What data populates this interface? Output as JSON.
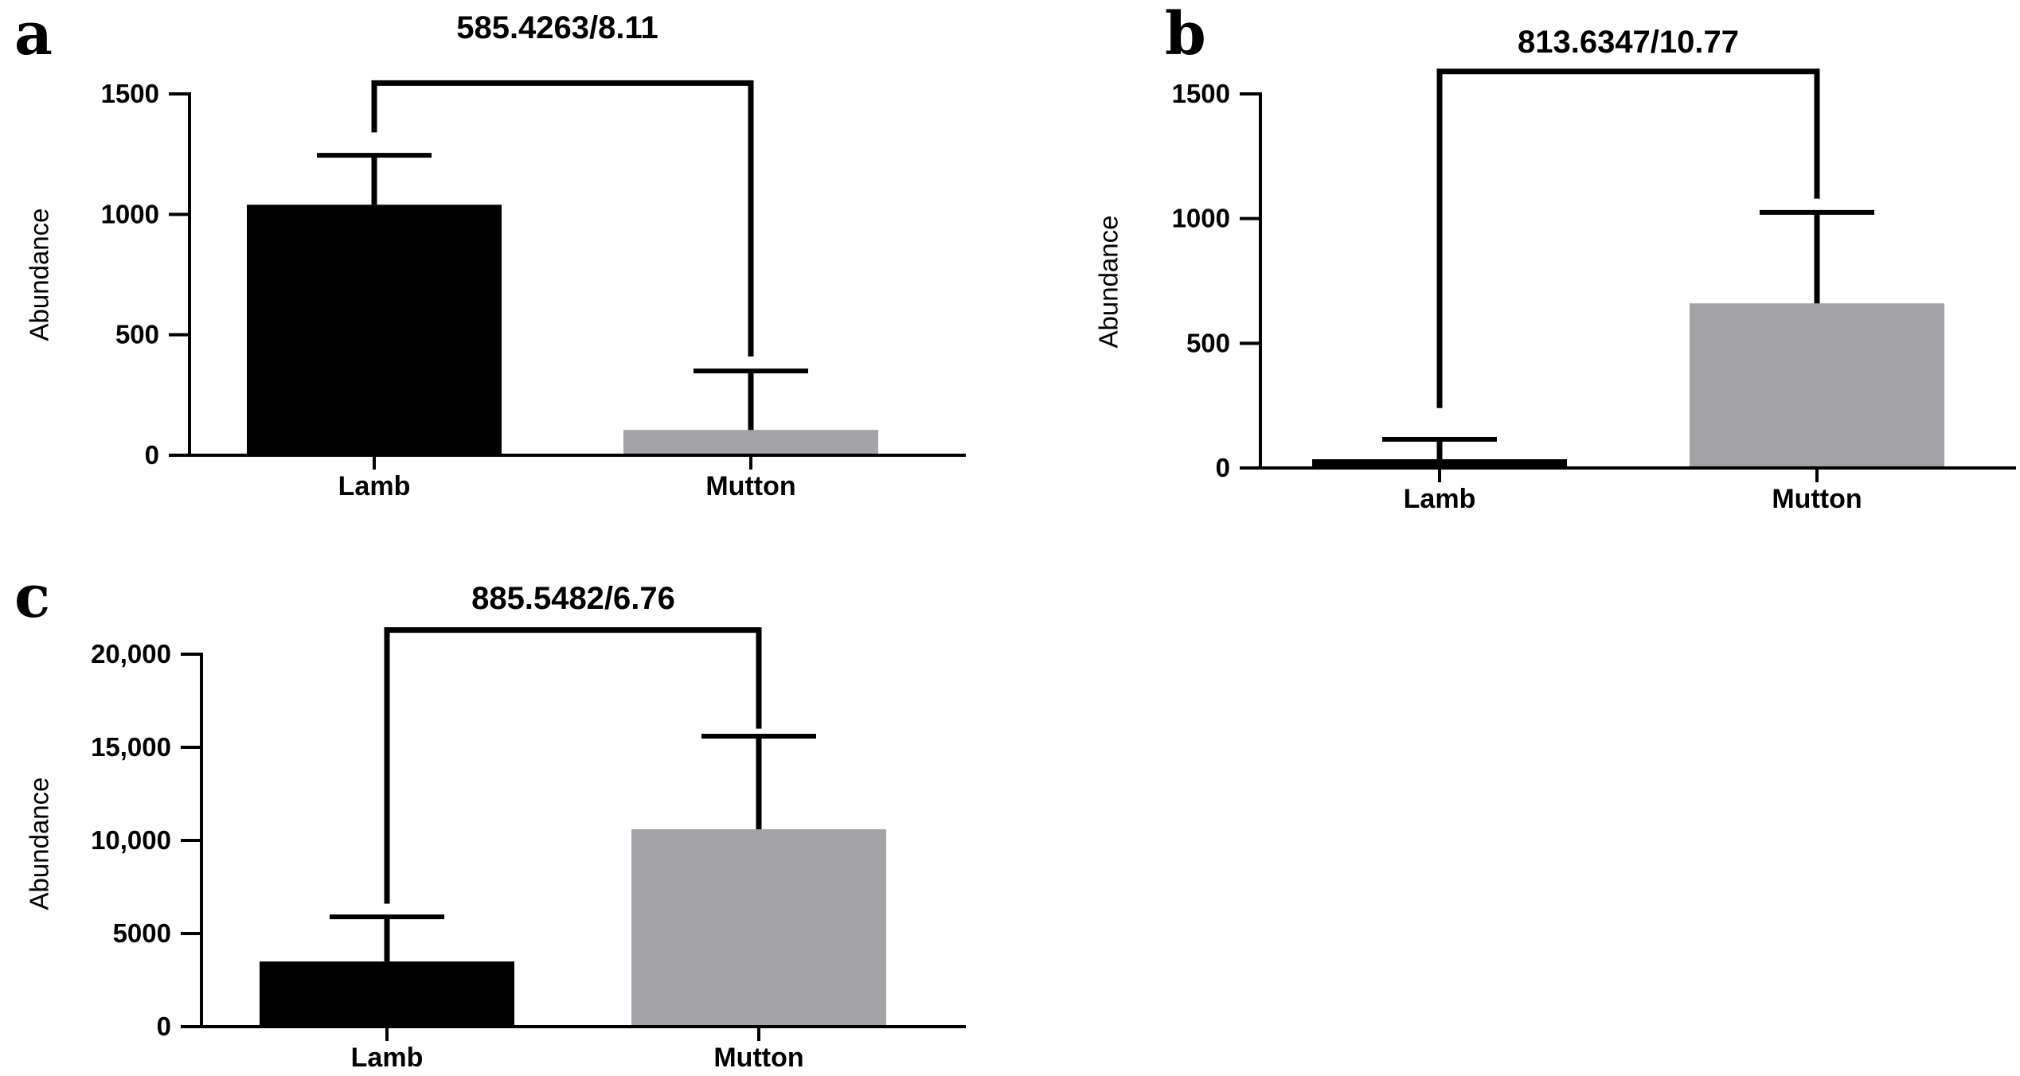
{
  "chart_data": [
    {
      "panel": "a",
      "type": "bar",
      "title": "585.4263/8.11",
      "ylabel": "Abundance",
      "xlabel": "",
      "categories": [
        "Lamb",
        "Mutton"
      ],
      "values": [
        1040,
        105
      ],
      "errors": [
        205,
        245
      ],
      "bar_colors": [
        "#000000",
        "#a3a2a6"
      ],
      "ylim": [
        0,
        1500
      ],
      "yticks": [
        0,
        500,
        1000,
        1500
      ],
      "ytick_labels": [
        "0",
        "500",
        "1000",
        "1500"
      ],
      "bracket_ends": [
        1340,
        410
      ],
      "bracket_top": 1545
    },
    {
      "panel": "b",
      "type": "bar",
      "title": "813.6347/10.77",
      "ylabel": "Abundance",
      "xlabel": "",
      "categories": [
        "Lamb",
        "Mutton"
      ],
      "values": [
        35,
        660
      ],
      "errors": [
        80,
        365
      ],
      "bar_colors": [
        "#000000",
        "#a3a2a6"
      ],
      "ylim": [
        0,
        1500
      ],
      "yticks": [
        0,
        500,
        1000,
        1500
      ],
      "ytick_labels": [
        "0",
        "500",
        "1000",
        "1500"
      ],
      "bracket_ends": [
        240,
        1080
      ],
      "bracket_top": 1590
    },
    {
      "panel": "c",
      "type": "bar",
      "title": "885.5482/6.76",
      "ylabel": "Abundance",
      "xlabel": "",
      "categories": [
        "Lamb",
        "Mutton"
      ],
      "values": [
        3500,
        10600
      ],
      "errors": [
        2400,
        5000
      ],
      "bar_colors": [
        "#000000",
        "#a3a2a6"
      ],
      "ylim": [
        0,
        20000
      ],
      "yticks": [
        0,
        5000,
        10000,
        15000,
        20000
      ],
      "ytick_labels": [
        "0",
        "5000",
        "10,000",
        "15,000",
        "20,000"
      ],
      "bracket_ends": [
        6600,
        16000
      ],
      "bracket_top": 21300
    }
  ]
}
